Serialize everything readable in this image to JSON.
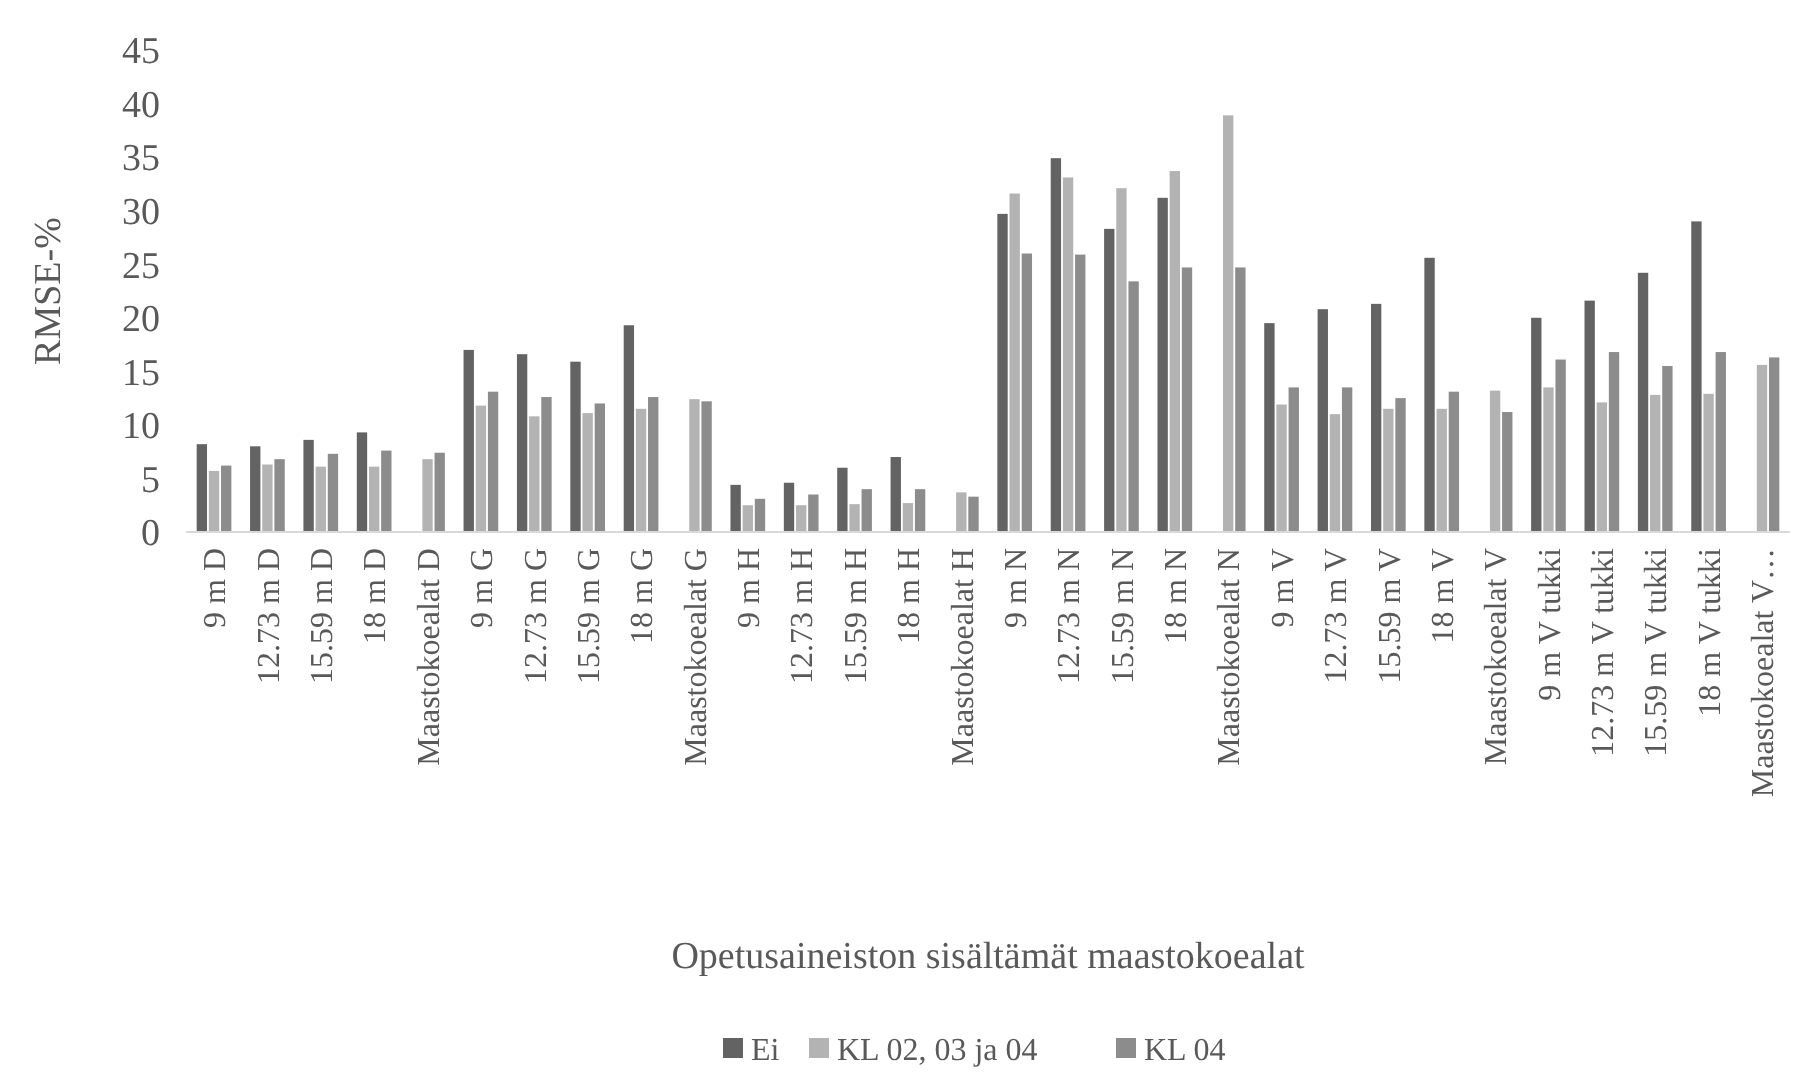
{
  "chart_data": {
    "type": "bar",
    "ylabel": "RMSE-%",
    "xlabel": "Opetusaineiston sisältämät maastokoealat",
    "categories": [
      "9 m D",
      "12.73 m D",
      "15.59 m D",
      "18 m D",
      "Maastokoealat D",
      "9 m G",
      "12.73 m G",
      "15.59 m G",
      "18 m G",
      "Maastokoealat G",
      "9 m H",
      "12.73 m H",
      "15.59 m H",
      "18 m H",
      "Maastokoealat H",
      "9 m N",
      "12.73 m N",
      "15.59 m N",
      "18 m N",
      "Maastokoealat N",
      "9 m V",
      "12.73 m V",
      "15.59 m V",
      "18 m V",
      "Maastokoealat V",
      "9 m V tukki",
      "12.73 m V tukki",
      "15.59 m V tukki",
      "18 m V tukki",
      "Maastokoealat V…"
    ],
    "series": [
      {
        "name": "Ei",
        "color": "#636363",
        "values": [
          8.2,
          8.0,
          8.6,
          9.3,
          null,
          17.0,
          16.6,
          15.9,
          19.3,
          null,
          4.4,
          4.6,
          6.0,
          7.0,
          null,
          29.7,
          34.9,
          28.3,
          31.2,
          null,
          19.5,
          20.8,
          21.3,
          25.6,
          null,
          20.0,
          21.6,
          24.2,
          29.0,
          null
        ]
      },
      {
        "name": "KL 02, 03 ja 04",
        "color": "#b3b3b3",
        "values": [
          5.7,
          6.3,
          6.1,
          6.1,
          6.8,
          11.8,
          10.8,
          11.1,
          11.5,
          12.4,
          2.5,
          2.5,
          2.6,
          2.7,
          3.7,
          31.6,
          33.1,
          32.1,
          33.7,
          38.9,
          11.9,
          11.0,
          11.5,
          11.5,
          13.2,
          13.5,
          12.1,
          12.8,
          12.9,
          15.6
        ]
      },
      {
        "name": "KL 04",
        "color": "#8c8c8c",
        "values": [
          6.2,
          6.8,
          7.3,
          7.6,
          7.4,
          13.1,
          12.6,
          12.0,
          12.6,
          12.2,
          3.1,
          3.5,
          4.0,
          4.0,
          3.3,
          26.0,
          25.9,
          23.4,
          24.7,
          24.7,
          13.5,
          13.5,
          12.5,
          13.1,
          11.2,
          16.1,
          16.8,
          15.5,
          16.8,
          16.3
        ]
      }
    ],
    "ylim": [
      0,
      45
    ],
    "yticks": [
      0,
      5,
      10,
      15,
      20,
      25,
      30,
      35,
      40,
      45
    ],
    "grid": false,
    "legend": "bottom"
  }
}
